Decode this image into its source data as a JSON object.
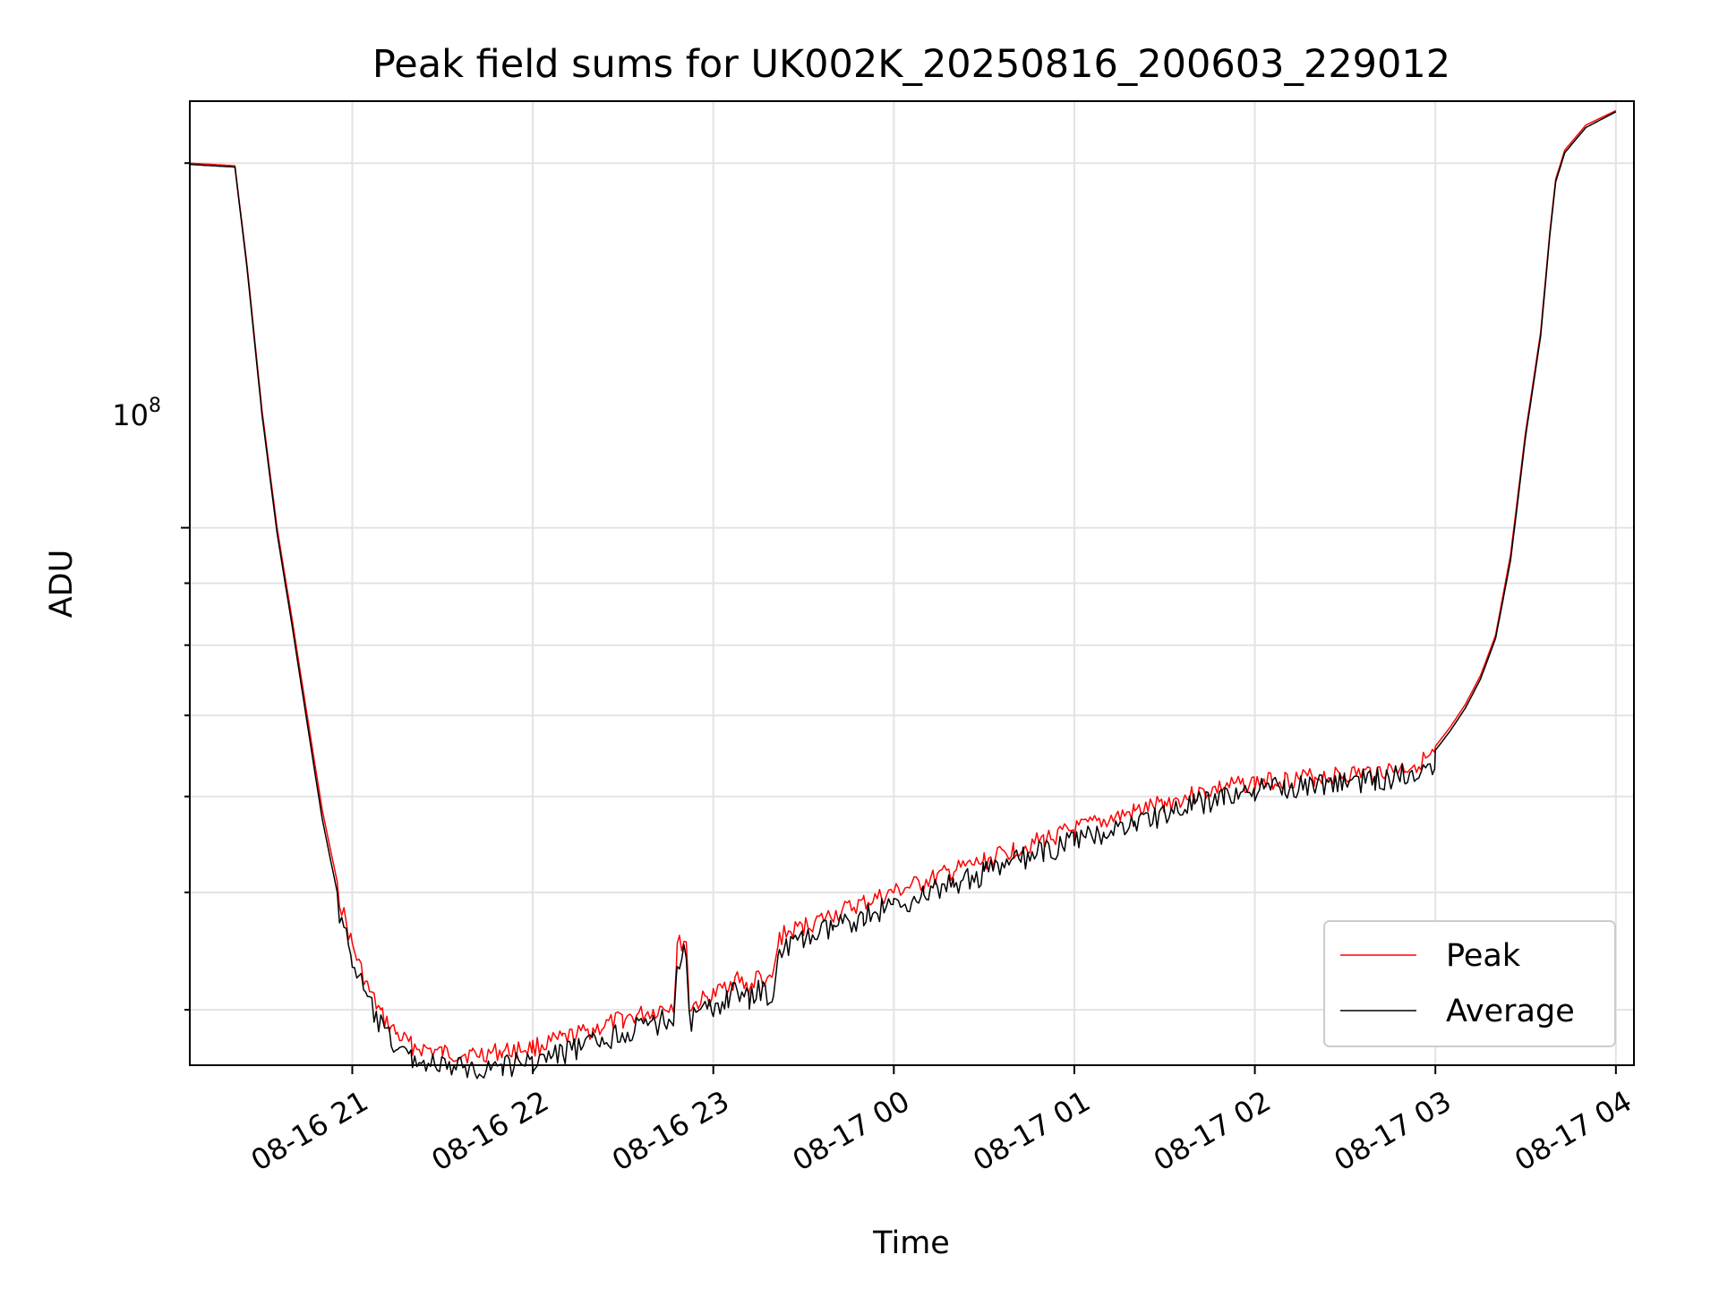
{
  "chart_data": {
    "type": "line",
    "title": "Peak field sums for UK002K_20250816_200603_229012",
    "xlabel": "Time",
    "ylabel": "ADU",
    "yscale": "log",
    "grid": true,
    "legend_position": "lower right",
    "x_ticks": [
      "08-16 21",
      "08-16 22",
      "08-16 23",
      "08-17 00",
      "08-17 01",
      "08-17 02",
      "08-17 03",
      "08-17 04"
    ],
    "y_tick_label": {
      "base": "10",
      "exponent": "8"
    },
    "xlim": [
      "2025-08-16 20:06",
      "2025-08-17 04:06"
    ],
    "ylim": [
      36000000,
      225000000
    ],
    "series": [
      {
        "name": "Peak",
        "color": "#ff0000",
        "points": [
          [
            "2025-08-16 20:06",
            200000000
          ],
          [
            "2025-08-16 20:21",
            199000000
          ],
          [
            "2025-08-16 20:25",
            165000000
          ],
          [
            "2025-08-16 20:30",
            125000000
          ],
          [
            "2025-08-16 20:35",
            100000000
          ],
          [
            "2025-08-16 20:40",
            84000000
          ],
          [
            "2025-08-16 20:45",
            70000000
          ],
          [
            "2025-08-16 20:50",
            58500000
          ],
          [
            "2025-08-16 20:55",
            51000000
          ],
          [
            "2025-08-16 21:00",
            46000000
          ],
          [
            "2025-08-16 21:05",
            42500000
          ],
          [
            "2025-08-16 21:10",
            40200000
          ],
          [
            "2025-08-16 21:15",
            38800000
          ],
          [
            "2025-08-16 21:20",
            38000000
          ],
          [
            "2025-08-16 21:30",
            37500000
          ],
          [
            "2025-08-16 21:40",
            37400000
          ],
          [
            "2025-08-16 21:50",
            37600000
          ],
          [
            "2025-08-16 22:00",
            37900000
          ],
          [
            "2025-08-16 22:10",
            38500000
          ],
          [
            "2025-08-16 22:20",
            39200000
          ],
          [
            "2025-08-16 22:30",
            40000000
          ],
          [
            "2025-08-16 22:40",
            40600000
          ],
          [
            "2025-08-16 22:47",
            41200000
          ],
          [
            "2025-08-16 22:48",
            46000000
          ],
          [
            "2025-08-16 22:51",
            46500000
          ],
          [
            "2025-08-16 22:52",
            40900000
          ],
          [
            "2025-08-16 22:55",
            41300000
          ],
          [
            "2025-08-16 23:00",
            41800000
          ],
          [
            "2025-08-16 23:05",
            42800000
          ],
          [
            "2025-08-16 23:08",
            43200000
          ],
          [
            "2025-08-16 23:12",
            42300000
          ],
          [
            "2025-08-16 23:15",
            43500000
          ],
          [
            "2025-08-16 23:18",
            42600000
          ],
          [
            "2025-08-16 23:20",
            43400000
          ],
          [
            "2025-08-16 23:22",
            46800000
          ],
          [
            "2025-08-16 23:30",
            47700000
          ],
          [
            "2025-08-16 23:40",
            48800000
          ],
          [
            "2025-08-16 23:50",
            49900000
          ],
          [
            "2025-08-17 00:00",
            50900000
          ],
          [
            "2025-08-17 00:10",
            51900000
          ],
          [
            "2025-08-17 00:20",
            53000000
          ],
          [
            "2025-08-17 00:30",
            54000000
          ],
          [
            "2025-08-17 00:40",
            55200000
          ],
          [
            "2025-08-17 00:50",
            56300000
          ],
          [
            "2025-08-17 01:00",
            57300000
          ],
          [
            "2025-08-17 01:10",
            58300000
          ],
          [
            "2025-08-17 01:20",
            59300000
          ],
          [
            "2025-08-17 01:30",
            60300000
          ],
          [
            "2025-08-17 01:40",
            61300000
          ],
          [
            "2025-08-17 01:50",
            62200000
          ],
          [
            "2025-08-17 02:00",
            62700000
          ],
          [
            "2025-08-17 02:10",
            63100000
          ],
          [
            "2025-08-17 02:20",
            63400000
          ],
          [
            "2025-08-17 02:30",
            63700000
          ],
          [
            "2025-08-17 02:40",
            64000000
          ],
          [
            "2025-08-17 02:50",
            64500000
          ],
          [
            "2025-08-17 03:00",
            66000000
          ],
          [
            "2025-08-17 03:05",
            68500000
          ],
          [
            "2025-08-17 03:10",
            71500000
          ],
          [
            "2025-08-17 03:15",
            75500000
          ],
          [
            "2025-08-17 03:20",
            81500000
          ],
          [
            "2025-08-17 03:25",
            95000000
          ],
          [
            "2025-08-17 03:30",
            120000000
          ],
          [
            "2025-08-17 03:35",
            145000000
          ],
          [
            "2025-08-17 03:38",
            175000000
          ],
          [
            "2025-08-17 03:40",
            194000000
          ],
          [
            "2025-08-17 03:43",
            205000000
          ],
          [
            "2025-08-17 03:50",
            215000000
          ],
          [
            "2025-08-17 04:00",
            221000000
          ]
        ]
      },
      {
        "name": "Average",
        "color": "#000000",
        "points": [
          [
            "2025-08-16 20:06",
            199500000
          ],
          [
            "2025-08-16 20:21",
            198500000
          ],
          [
            "2025-08-16 20:25",
            164000000
          ],
          [
            "2025-08-16 20:30",
            124000000
          ],
          [
            "2025-08-16 20:35",
            99000000
          ],
          [
            "2025-08-16 20:40",
            83000000
          ],
          [
            "2025-08-16 20:45",
            69000000
          ],
          [
            "2025-08-16 20:50",
            57500000
          ],
          [
            "2025-08-16 20:55",
            50000000
          ],
          [
            "2025-08-16 21:00",
            45000000
          ],
          [
            "2025-08-16 21:05",
            41700000
          ],
          [
            "2025-08-16 21:10",
            39400000
          ],
          [
            "2025-08-16 21:15",
            38100000
          ],
          [
            "2025-08-16 21:20",
            37300000
          ],
          [
            "2025-08-16 21:30",
            36700000
          ],
          [
            "2025-08-16 21:40",
            36600000
          ],
          [
            "2025-08-16 21:50",
            36800000
          ],
          [
            "2025-08-16 22:00",
            37100000
          ],
          [
            "2025-08-16 22:10",
            37700000
          ],
          [
            "2025-08-16 22:20",
            38400000
          ],
          [
            "2025-08-16 22:30",
            39200000
          ],
          [
            "2025-08-16 22:40",
            39800000
          ],
          [
            "2025-08-16 22:47",
            40400000
          ],
          [
            "2025-08-16 22:48",
            45000000
          ],
          [
            "2025-08-16 22:51",
            45500000
          ],
          [
            "2025-08-16 22:52",
            40100000
          ],
          [
            "2025-08-16 22:55",
            40500000
          ],
          [
            "2025-08-16 23:00",
            41000000
          ],
          [
            "2025-08-16 23:05",
            42000000
          ],
          [
            "2025-08-16 23:08",
            42400000
          ],
          [
            "2025-08-16 23:12",
            41500000
          ],
          [
            "2025-08-16 23:15",
            42700000
          ],
          [
            "2025-08-16 23:18",
            41800000
          ],
          [
            "2025-08-16 23:20",
            42600000
          ],
          [
            "2025-08-16 23:22",
            45800000
          ],
          [
            "2025-08-16 23:30",
            46700000
          ],
          [
            "2025-08-16 23:40",
            47800000
          ],
          [
            "2025-08-16 23:50",
            48900000
          ],
          [
            "2025-08-17 00:00",
            49900000
          ],
          [
            "2025-08-17 00:10",
            50900000
          ],
          [
            "2025-08-17 00:20",
            52000000
          ],
          [
            "2025-08-17 00:30",
            53000000
          ],
          [
            "2025-08-17 00:40",
            54200000
          ],
          [
            "2025-08-17 00:50",
            55300000
          ],
          [
            "2025-08-17 01:00",
            56400000
          ],
          [
            "2025-08-17 01:10",
            57400000
          ],
          [
            "2025-08-17 01:20",
            58400000
          ],
          [
            "2025-08-17 01:30",
            59400000
          ],
          [
            "2025-08-17 01:40",
            60400000
          ],
          [
            "2025-08-17 01:50",
            61400000
          ],
          [
            "2025-08-17 02:00",
            62000000
          ],
          [
            "2025-08-17 02:10",
            62500000
          ],
          [
            "2025-08-17 02:20",
            62800000
          ],
          [
            "2025-08-17 02:30",
            63100000
          ],
          [
            "2025-08-17 02:40",
            63400000
          ],
          [
            "2025-08-17 02:50",
            64000000
          ],
          [
            "2025-08-17 03:00",
            65500000
          ],
          [
            "2025-08-17 03:05",
            68000000
          ],
          [
            "2025-08-17 03:10",
            71000000
          ],
          [
            "2025-08-17 03:15",
            75000000
          ],
          [
            "2025-08-17 03:20",
            81000000
          ],
          [
            "2025-08-17 03:25",
            94000000
          ],
          [
            "2025-08-17 03:30",
            119000000
          ],
          [
            "2025-08-17 03:35",
            144000000
          ],
          [
            "2025-08-17 03:38",
            174000000
          ],
          [
            "2025-08-17 03:40",
            193000000
          ],
          [
            "2025-08-17 03:43",
            204000000
          ],
          [
            "2025-08-17 03:50",
            214000000
          ],
          [
            "2025-08-17 04:00",
            220500000
          ]
        ]
      }
    ]
  }
}
